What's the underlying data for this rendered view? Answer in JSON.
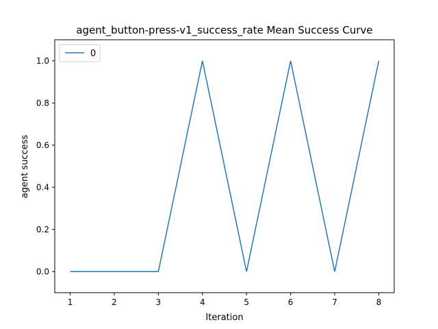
{
  "chart_data": {
    "type": "line",
    "title": "agent_button-press-v1_success_rate Mean Success Curve",
    "xlabel": "Iteration",
    "ylabel": "agent success",
    "x": [
      1,
      2,
      3,
      4,
      5,
      6,
      7,
      8
    ],
    "series": [
      {
        "name": "0",
        "values": [
          0,
          0,
          0,
          1,
          0,
          1,
          0,
          1
        ],
        "color": "#1f77b4"
      }
    ],
    "xlim": [
      0.65,
      8.35
    ],
    "ylim": [
      -0.1,
      1.1
    ],
    "xticks": [
      1,
      2,
      3,
      4,
      5,
      6,
      7,
      8
    ],
    "yticks": [
      0.0,
      0.2,
      0.4,
      0.6,
      0.8,
      1.0
    ],
    "ytick_labels": [
      "0.0",
      "0.2",
      "0.4",
      "0.6",
      "0.8",
      "1.0"
    ],
    "grid": false,
    "legend_position": "top-left"
  }
}
